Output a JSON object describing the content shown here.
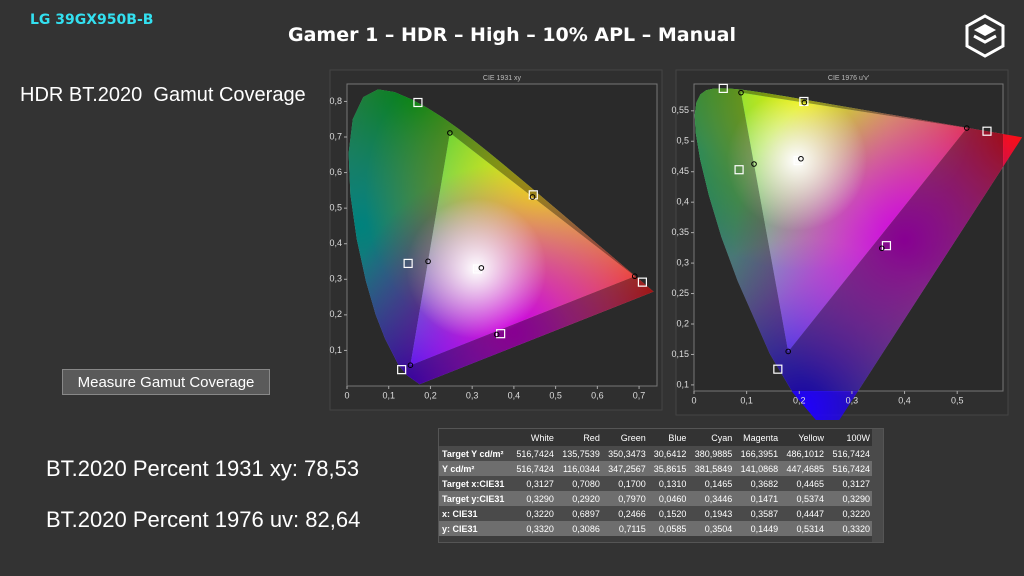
{
  "header": {
    "model": "LG 39GX950B-B",
    "title": "Gamer 1 – HDR – High – 10% APL – Manual"
  },
  "heading": "HDR BT.2020  Gamut Coverage",
  "button": "Measure Gamut Coverage",
  "results": [
    "BT.2020 Percent 1931 xy: 78,53",
    "BT.2020 Percent 1976 uv: 82,64"
  ],
  "charts": [
    {
      "title": "CIE 1931 xy",
      "space": "xy",
      "xlim": [
        0,
        0.743
      ],
      "ylim": [
        0,
        0.849
      ],
      "xticks": [
        0,
        {
          "value": 0.1,
          "label": "0,1"
        },
        {
          "value": 0.2,
          "label": "0,2"
        },
        {
          "value": 0.3,
          "label": "0,3"
        },
        {
          "value": 0.4,
          "label": "0,4"
        },
        {
          "value": 0.5,
          "label": "0,5"
        },
        {
          "value": 0.6,
          "label": "0,6"
        },
        {
          "value": 0.7,
          "label": "0,7"
        }
      ],
      "yticks": [
        {
          "value": 0.1,
          "label": "0,1"
        },
        {
          "value": 0.2,
          "label": "0,2"
        },
        {
          "value": 0.3,
          "label": "0,3"
        },
        {
          "value": 0.4,
          "label": "0,4"
        },
        {
          "value": 0.5,
          "label": "0,5"
        },
        {
          "value": 0.6,
          "label": "0,6"
        },
        {
          "value": 0.7,
          "label": "0,7"
        },
        {
          "value": 0.8,
          "label": "0,8"
        }
      ]
    },
    {
      "title": "CIE 1976 u'v'",
      "space": "uv",
      "xlim": [
        0,
        0.587
      ],
      "ylim": [
        0.09,
        0.594
      ],
      "xticks": [
        0,
        {
          "value": 0.1,
          "label": "0,1"
        },
        {
          "value": 0.2,
          "label": "0,2"
        },
        {
          "value": 0.3,
          "label": "0,3"
        },
        {
          "value": 0.4,
          "label": "0,4"
        },
        {
          "value": 0.5,
          "label": "0,5"
        }
      ],
      "yticks": [
        {
          "value": 0.1,
          "label": "0,1"
        },
        {
          "value": 0.15,
          "label": "0,15"
        },
        {
          "value": 0.2,
          "label": "0,2"
        },
        {
          "value": 0.25,
          "label": "0,25"
        },
        {
          "value": 0.3,
          "label": "0,3"
        },
        {
          "value": 0.35,
          "label": "0,35"
        },
        {
          "value": 0.4,
          "label": "0,4"
        },
        {
          "value": 0.45,
          "label": "0,45"
        },
        {
          "value": 0.5,
          "label": "0,5"
        },
        {
          "value": 0.55,
          "label": "0,55"
        }
      ]
    }
  ],
  "table": {
    "columns": [
      "White",
      "Red",
      "Green",
      "Blue",
      "Cyan",
      "Magenta",
      "Yellow",
      "100W"
    ],
    "rows": [
      {
        "label": "Target Y cd/m²",
        "cells": [
          "516,7424",
          "135,7539",
          "350,3473",
          "30,6412",
          "380,9885",
          "166,3951",
          "486,1012",
          "516,7424"
        ]
      },
      {
        "label": "Y cd/m²",
        "cells": [
          "516,7424",
          "116,0344",
          "347,2567",
          "35,8615",
          "381,5849",
          "141,0868",
          "447,4685",
          "516,7424"
        ]
      },
      {
        "label": "Target x:CIE31",
        "cells": [
          "0,3127",
          "0,7080",
          "0,1700",
          "0,1310",
          "0,1465",
          "0,3682",
          "0,4465",
          "0,3127"
        ]
      },
      {
        "label": "Target y:CIE31",
        "cells": [
          "0,3290",
          "0,2920",
          "0,7970",
          "0,0460",
          "0,3446",
          "0,1471",
          "0,5374",
          "0,3290"
        ]
      },
      {
        "label": "x: CIE31",
        "cells": [
          "0,3220",
          "0,6897",
          "0,2466",
          "0,1520",
          "0,1943",
          "0,3587",
          "0,4447",
          "0,3220"
        ]
      },
      {
        "label": "y: CIE31",
        "cells": [
          "0,3320",
          "0,3086",
          "0,7115",
          "0,0585",
          "0,3504",
          "0,1449",
          "0,5314",
          "0,3320"
        ]
      }
    ]
  }
}
